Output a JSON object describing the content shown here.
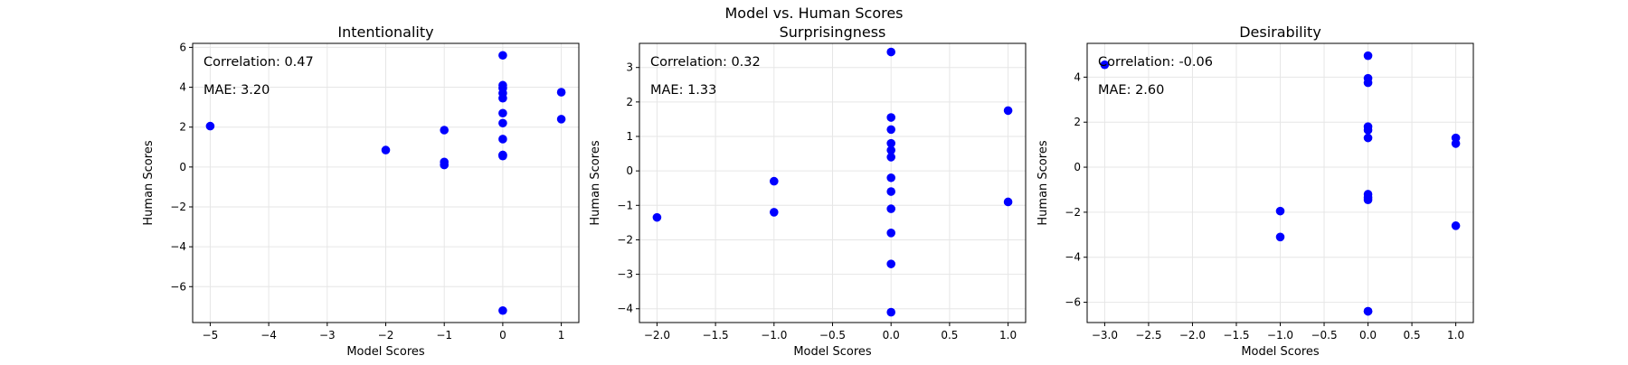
{
  "figure": {
    "suptitle": "Model vs. Human Scores"
  },
  "style": {
    "point_color": "#0000ff",
    "grid_color": "#e6e6e6"
  },
  "chart_data": [
    {
      "type": "scatter",
      "title": "Intentionality",
      "xlabel": "Model Scores",
      "ylabel": "Human Scores",
      "xlim": [
        -5.3,
        1.3
      ],
      "ylim": [
        -7.8,
        6.2
      ],
      "xticks": [
        -5,
        -4,
        -3,
        -2,
        -1,
        0,
        1
      ],
      "yticks": [
        -6,
        -4,
        -2,
        0,
        2,
        4,
        6
      ],
      "grid": true,
      "annotations": [
        "Correlation: 0.47",
        "MAE: 3.20"
      ],
      "x": [
        -5,
        -2,
        -1,
        -1,
        -1,
        0,
        0,
        0,
        0,
        0,
        0,
        0,
        0,
        0,
        0,
        0,
        0,
        1,
        1
      ],
      "y": [
        2.05,
        0.85,
        1.85,
        0.25,
        0.1,
        5.6,
        4.1,
        3.95,
        3.7,
        3.45,
        2.7,
        2.2,
        1.4,
        0.6,
        0.55,
        -7.2,
        0.6,
        3.75,
        2.4
      ]
    },
    {
      "type": "scatter",
      "title": "Surprisingness",
      "xlabel": "Model Scores",
      "ylabel": "Human Scores",
      "xlim": [
        -2.15,
        1.15
      ],
      "ylim": [
        -4.4,
        3.7
      ],
      "xticks": [
        -2.0,
        -1.5,
        -1.0,
        -0.5,
        0.0,
        0.5,
        1.0
      ],
      "xtick_labels": [
        "−2.0",
        "−1.5",
        "−1.0",
        "−0.5",
        "0.0",
        "0.5",
        "1.0"
      ],
      "yticks": [
        -4,
        -3,
        -2,
        -1,
        0,
        1,
        2,
        3
      ],
      "grid": true,
      "annotations": [
        "Correlation: 0.32",
        "MAE: 1.33"
      ],
      "x": [
        -2,
        -1,
        -1,
        0,
        0,
        0,
        0,
        0,
        0,
        0,
        0,
        0,
        0,
        0,
        0,
        1,
        1
      ],
      "y": [
        -1.35,
        -0.3,
        -1.2,
        3.45,
        1.55,
        1.2,
        0.8,
        0.6,
        0.4,
        -0.2,
        -0.6,
        -1.1,
        -1.8,
        -2.7,
        -4.1,
        1.75,
        -0.9
      ]
    },
    {
      "type": "scatter",
      "title": "Desirability",
      "xlabel": "Model Scores",
      "ylabel": "Human Scores",
      "xlim": [
        -3.2,
        1.2
      ],
      "ylim": [
        -6.9,
        5.5
      ],
      "xticks": [
        -3.0,
        -2.5,
        -2.0,
        -1.5,
        -1.0,
        -0.5,
        0.0,
        0.5,
        1.0
      ],
      "xtick_labels": [
        "−3.0",
        "−2.5",
        "−2.0",
        "−1.5",
        "−1.0",
        "−0.5",
        "0.0",
        "0.5",
        "1.0"
      ],
      "yticks": [
        -6,
        -4,
        -2,
        0,
        2,
        4
      ],
      "grid": true,
      "annotations": [
        "Correlation: -0.06",
        "MAE: 2.60"
      ],
      "x": [
        -3,
        -1,
        -1,
        0,
        0,
        0,
        0,
        0,
        0,
        0,
        0,
        0,
        0,
        0,
        1,
        1,
        1
      ],
      "y": [
        4.55,
        -1.95,
        -3.1,
        4.95,
        3.95,
        3.75,
        1.8,
        1.65,
        1.3,
        -1.2,
        -1.35,
        -1.45,
        -6.4,
        -6.4,
        1.3,
        1.05,
        -2.6
      ]
    }
  ]
}
